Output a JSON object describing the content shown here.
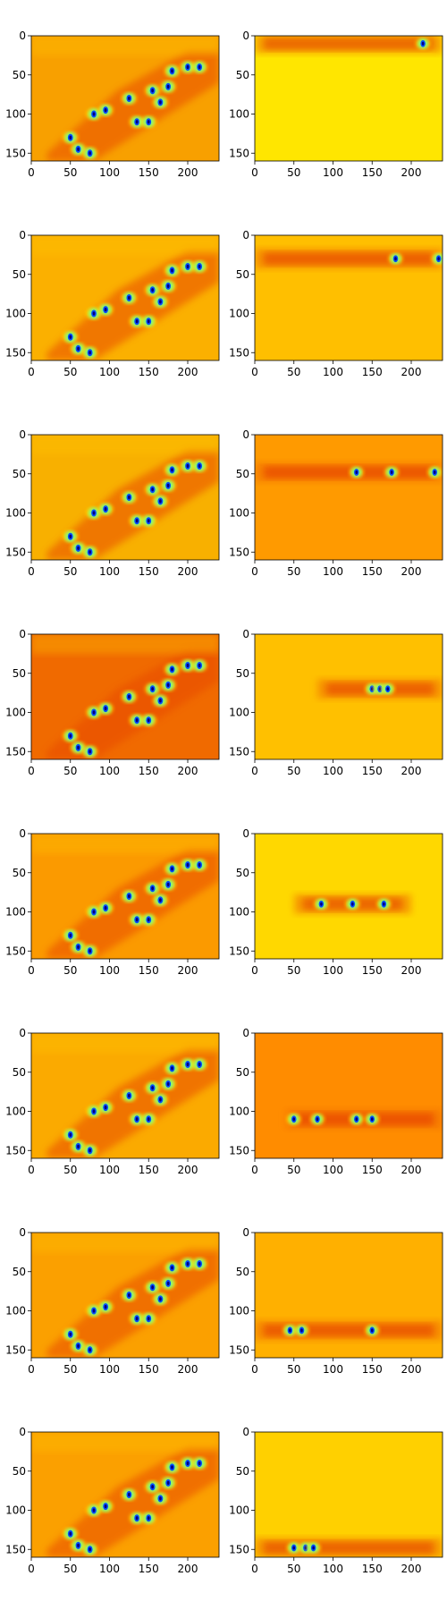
{
  "chart_data": {
    "type": "heatmap",
    "layout": "8 rows x 2 columns",
    "colormap": "jet",
    "xlim": [
      0,
      240
    ],
    "ylim": [
      160,
      0
    ],
    "x_tick_labels": [
      "0",
      "50",
      "100",
      "150",
      "200"
    ],
    "y_tick_labels": [
      "0",
      "50",
      "100",
      "150"
    ],
    "left_column": {
      "description": "full feature map, similar across rows; warm orange field with a diagonal band of cyan/blue blobs",
      "blobs_approx": [
        [
          50,
          130
        ],
        [
          60,
          145
        ],
        [
          75,
          150
        ],
        [
          80,
          100
        ],
        [
          95,
          95
        ],
        [
          125,
          80
        ],
        [
          135,
          110
        ],
        [
          150,
          110
        ],
        [
          155,
          70
        ],
        [
          165,
          85
        ],
        [
          175,
          65
        ],
        [
          180,
          45
        ],
        [
          200,
          40
        ],
        [
          215,
          40
        ]
      ],
      "row_backgrounds": [
        "#f8a000",
        "#fbb000",
        "#f8b000",
        "#f06a00",
        "#fb9a00",
        "#fbaa00",
        "#fba000",
        "#fba000"
      ]
    },
    "right_column": {
      "description": "per-row horizontal activation band; flat background elsewhere",
      "rows": [
        {
          "band_center_y": 10,
          "band_span_x": [
            0,
            240
          ],
          "background": "#ffe600",
          "blobs_x": [
            215
          ]
        },
        {
          "band_center_y": 30,
          "band_span_x": [
            0,
            240
          ],
          "background": "#ffbf00",
          "blobs_x": [
            180,
            235
          ]
        },
        {
          "band_center_y": 48,
          "band_span_x": [
            0,
            240
          ],
          "background": "#ff9a00",
          "blobs_x": [
            130,
            175,
            230
          ]
        },
        {
          "band_center_y": 70,
          "band_span_x": [
            80,
            240
          ],
          "background": "#ffc000",
          "blobs_x": [
            150,
            160,
            170
          ]
        },
        {
          "band_center_y": 90,
          "band_span_x": [
            50,
            200
          ],
          "background": "#ffd800",
          "blobs_x": [
            85,
            125,
            165
          ]
        },
        {
          "band_center_y": 110,
          "band_span_x": [
            40,
            240
          ],
          "background": "#ff8c00",
          "blobs_x": [
            50,
            80,
            130,
            150
          ]
        },
        {
          "band_center_y": 125,
          "band_span_x": [
            0,
            240
          ],
          "background": "#ffb000",
          "blobs_x": [
            45,
            60,
            150
          ]
        },
        {
          "band_center_y": 148,
          "band_span_x": [
            0,
            240
          ],
          "background": "#ffd000",
          "blobs_x": [
            50,
            65,
            75
          ]
        }
      ]
    }
  }
}
